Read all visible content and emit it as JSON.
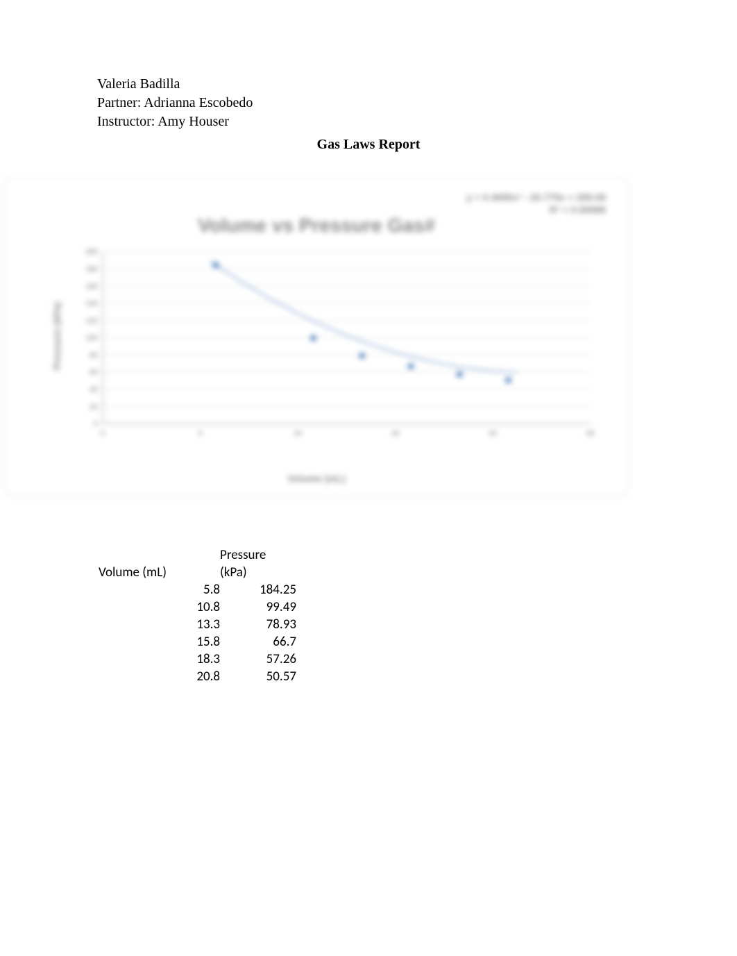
{
  "header": {
    "line1": "Valeria Badilla",
    "line2": "Partner: Adrianna Escobedo",
    "line3": "Instructor: Amy Houser"
  },
  "title": "Gas Laws Report",
  "chart": {
    "type": "scatter-with-trendline",
    "title": "Volume vs Pressure Gas#",
    "equation_line1": "y = 0.4696x² - 20.779x + 289.08",
    "equation_line2": "R² = 0.99988",
    "x_axis_label": "Volume (mL)",
    "y_axis_label": "Pressure (kPa)",
    "xlim": [
      0,
      25
    ],
    "x_ticks": [
      0,
      5,
      10,
      15,
      20,
      25
    ],
    "ylim": [
      0,
      200
    ],
    "y_ticks": [
      0,
      20,
      40,
      60,
      80,
      100,
      120,
      140,
      160,
      180,
      200
    ],
    "grid_color": "#d9d9d9",
    "axis_text_color": "#8a8a8a",
    "background_color": "#ffffff",
    "marker_color": "#4f81bd",
    "line_color": "#4f81bd",
    "marker_radius": 5,
    "line_width": 1.5,
    "title_fontsize": 28,
    "label_fontsize": 14,
    "tick_fontsize": 11,
    "points": [
      {
        "x": 5.8,
        "y": 184.25
      },
      {
        "x": 10.8,
        "y": 99.49
      },
      {
        "x": 13.3,
        "y": 78.93
      },
      {
        "x": 15.8,
        "y": 66.7
      },
      {
        "x": 18.3,
        "y": 57.26
      },
      {
        "x": 20.8,
        "y": 50.57
      }
    ]
  },
  "table": {
    "columns": [
      "Volume (mL)",
      "Pressure (kPa)"
    ],
    "column_header_vol": "Volume (mL)",
    "column_header_press_top": "Pressure",
    "column_header_press_bot": "(kPa)",
    "rows": [
      [
        "5.8",
        "184.25"
      ],
      [
        "10.8",
        "99.49"
      ],
      [
        "13.3",
        "78.93"
      ],
      [
        "15.8",
        "66.7"
      ],
      [
        "18.3",
        "57.26"
      ],
      [
        "20.8",
        "50.57"
      ]
    ]
  }
}
